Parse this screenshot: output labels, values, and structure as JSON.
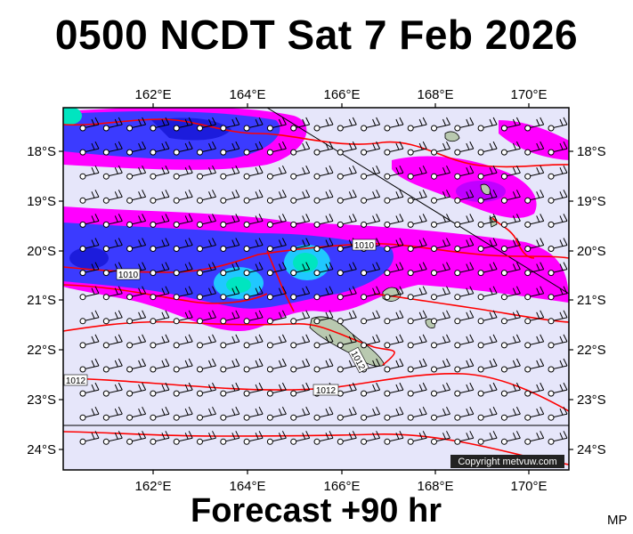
{
  "header": {
    "title": "0500 NCDT Sat 7 Feb 2026"
  },
  "footer": {
    "forecast": "Forecast +90 hr",
    "corner_code": "MP"
  },
  "map": {
    "lon_ticks": [
      "162°E",
      "164°E",
      "166°E",
      "168°E",
      "170°E"
    ],
    "lat_ticks": [
      "18°S",
      "19°S",
      "20°S",
      "21°S",
      "22°S",
      "23°S",
      "24°S"
    ],
    "isobar_labels": [
      "1010",
      "1010",
      "1012",
      "1012",
      "1012"
    ],
    "copyright": "Copyright metvuw.com",
    "colors": {
      "background": "#e6e6fa",
      "rain_light": "#ff00ff",
      "rain_medium": "#3b3bff",
      "rain_heavy": "#00e5c0",
      "isobar": "#ff0000",
      "land": "#b9c9b0"
    }
  }
}
